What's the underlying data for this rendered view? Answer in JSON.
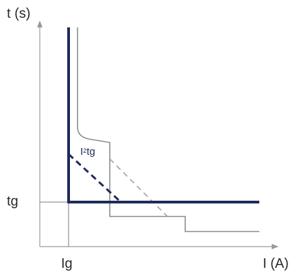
{
  "labels": {
    "y_axis": "t (s)",
    "x_axis": "I (A)",
    "tg": "tg",
    "ig": "Ig",
    "i2tg_base": "I",
    "i2tg_sup": "2",
    "i2tg_rest": "tg"
  },
  "colors": {
    "axis": "#9a9a9a",
    "main_curve": "#1f2a5a",
    "outer_curve": "#8c8c8c",
    "dashed_gray": "#a0a0a0",
    "text": "#2a2a2a"
  }
}
